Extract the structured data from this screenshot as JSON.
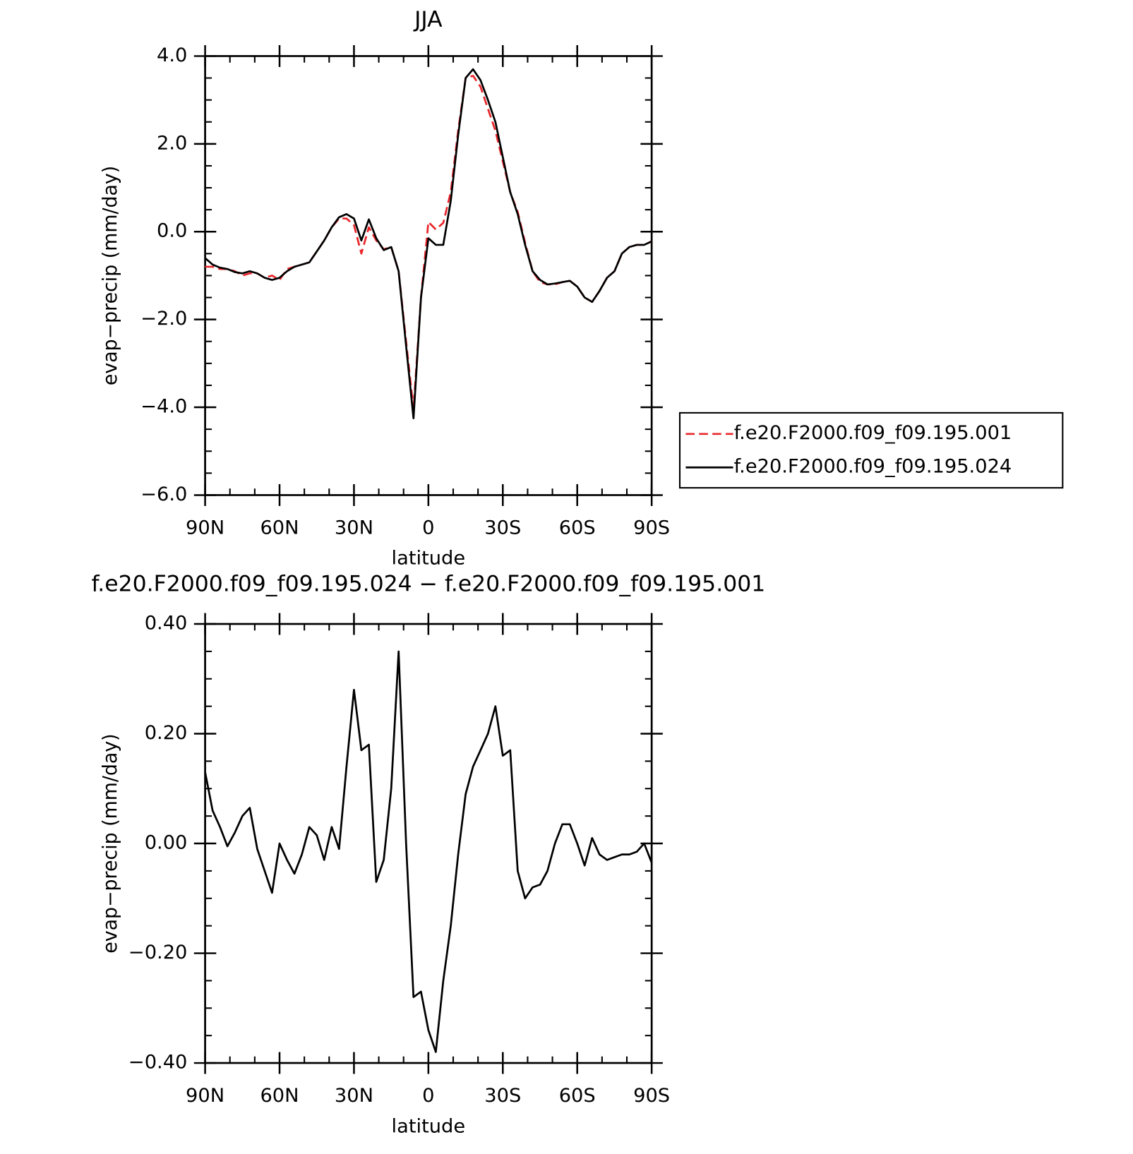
{
  "chart_data": [
    {
      "type": "line",
      "title": "JJA",
      "xlabel": "latitude",
      "ylabel": "evap−precip (mm/day)",
      "x": [
        90,
        87,
        84,
        81,
        78,
        75,
        72,
        69,
        66,
        63,
        60,
        57,
        54,
        51,
        48,
        45,
        42,
        39,
        36,
        33,
        30,
        27,
        24,
        21,
        18,
        15,
        12,
        9,
        6,
        3,
        0,
        -3,
        -6,
        -9,
        -12,
        -15,
        -18,
        -21,
        -24,
        -27,
        -30,
        -33,
        -36,
        -39,
        -42,
        -45,
        -48,
        -51,
        -54,
        -57,
        -60,
        -63,
        -66,
        -69,
        -72,
        -75,
        -78,
        -81,
        -84,
        -87,
        -90
      ],
      "series": [
        {
          "name": "f.e20.F2000.f09_f09.195.001",
          "color": "#e8262b",
          "dash": true,
          "values": [
            -0.8,
            -0.8,
            -0.85,
            -0.85,
            -0.9,
            -1.0,
            -0.95,
            -0.95,
            -1.05,
            -1.0,
            -1.1,
            -0.85,
            -0.8,
            -0.75,
            -0.7,
            -0.45,
            -0.2,
            0.1,
            0.3,
            0.3,
            0.15,
            -0.5,
            0.1,
            -0.2,
            -0.4,
            -0.35,
            -0.9,
            -2.5,
            -4.05,
            -1.5,
            0.22,
            0.05,
            0.2,
            0.9,
            2.3,
            3.5,
            3.55,
            3.3,
            2.8,
            2.3,
            1.6,
            0.9,
            0.45,
            -0.25,
            -0.9,
            -1.15,
            -1.2,
            -1.2,
            -1.15,
            -1.12,
            -1.25,
            -1.5,
            -1.6,
            -1.35,
            -1.05,
            -0.9,
            -0.5,
            -0.35,
            -0.3,
            -0.3,
            -0.22
          ]
        },
        {
          "name": "f.e20.F2000.f09_f09.195.024",
          "color": "#000000",
          "dash": false,
          "values": [
            -0.6,
            -0.75,
            -0.82,
            -0.85,
            -0.92,
            -0.95,
            -0.9,
            -0.95,
            -1.05,
            -1.1,
            -1.05,
            -0.9,
            -0.8,
            -0.75,
            -0.7,
            -0.45,
            -0.2,
            0.1,
            0.33,
            0.4,
            0.3,
            -0.2,
            0.28,
            -0.15,
            -0.42,
            -0.35,
            -0.9,
            -2.6,
            -4.25,
            -1.5,
            -0.15,
            -0.3,
            -0.3,
            0.7,
            2.2,
            3.5,
            3.7,
            3.45,
            3.0,
            2.5,
            1.7,
            0.9,
            0.4,
            -0.3,
            -0.9,
            -1.1,
            -1.2,
            -1.18,
            -1.15,
            -1.12,
            -1.25,
            -1.5,
            -1.6,
            -1.35,
            -1.05,
            -0.9,
            -0.5,
            -0.35,
            -0.3,
            -0.3,
            -0.22
          ]
        }
      ],
      "xlim": [
        90,
        -90
      ],
      "xticks": [
        {
          "value": 90,
          "label": "90N"
        },
        {
          "value": 60,
          "label": "60N"
        },
        {
          "value": 30,
          "label": "30N"
        },
        0,
        {
          "value": -30,
          "label": "30S"
        },
        {
          "value": -60,
          "label": "60S"
        },
        {
          "value": -90,
          "label": "90S"
        }
      ],
      "ylim": [
        -6,
        4
      ],
      "yticks": [
        {
          "value": 4,
          "label": "4.0"
        },
        {
          "value": 2,
          "label": "2.0"
        },
        {
          "value": 0,
          "label": "0.0"
        },
        {
          "value": -2,
          "label": "−2.0"
        },
        {
          "value": -4,
          "label": "−4.0"
        },
        {
          "value": -6,
          "label": "−6.0"
        }
      ],
      "legend": "right"
    },
    {
      "type": "line",
      "title": "f.e20.F2000.f09_f09.195.024 − f.e20.F2000.f09_f09.195.001",
      "xlabel": "latitude",
      "ylabel": "evap−precip (mm/day)",
      "x": [
        90,
        87,
        84,
        81,
        78,
        75,
        72,
        69,
        66,
        63,
        60,
        57,
        54,
        51,
        48,
        45,
        42,
        39,
        36,
        33,
        30,
        27,
        24,
        21,
        18,
        15,
        12,
        9,
        6,
        3,
        0,
        -3,
        -6,
        -9,
        -12,
        -15,
        -18,
        -21,
        -24,
        -27,
        -30,
        -33,
        -36,
        -39,
        -42,
        -45,
        -48,
        -51,
        -54,
        -57,
        -60,
        -63,
        -66,
        -69,
        -72,
        -75,
        -78,
        -81,
        -84,
        -87,
        -90
      ],
      "color": "#000000",
      "values": [
        0.13,
        0.06,
        0.03,
        -0.005,
        0.02,
        0.05,
        0.065,
        -0.01,
        -0.05,
        -0.09,
        0.0,
        -0.03,
        -0.055,
        -0.02,
        0.03,
        0.015,
        -0.03,
        0.03,
        -0.01,
        0.14,
        0.28,
        0.17,
        0.18,
        -0.07,
        -0.03,
        0.1,
        0.35,
        0.0,
        -0.28,
        -0.27,
        -0.34,
        -0.38,
        -0.25,
        -0.15,
        -0.02,
        0.09,
        0.14,
        0.17,
        0.2,
        0.25,
        0.16,
        0.17,
        -0.05,
        -0.1,
        -0.08,
        -0.075,
        -0.05,
        0.0,
        0.035,
        0.035,
        0.0,
        -0.04,
        0.01,
        -0.02,
        -0.03,
        -0.025,
        -0.02,
        -0.02,
        -0.015,
        0.0,
        -0.035
      ],
      "xlim": [
        90,
        -90
      ],
      "xticks": [
        {
          "value": 90,
          "label": "90N"
        },
        {
          "value": 60,
          "label": "60N"
        },
        {
          "value": 30,
          "label": "30N"
        },
        0,
        {
          "value": -30,
          "label": "30S"
        },
        {
          "value": -60,
          "label": "60S"
        },
        {
          "value": -90,
          "label": "90S"
        }
      ],
      "ylim": [
        -0.4,
        0.4
      ],
      "yticks": [
        {
          "value": 0.4,
          "label": "0.40"
        },
        {
          "value": 0.2,
          "label": "0.20"
        },
        {
          "value": 0,
          "label": "0.00"
        },
        {
          "value": -0.2,
          "label": "−0.20"
        },
        {
          "value": -0.4,
          "label": "−0.40"
        }
      ]
    }
  ]
}
